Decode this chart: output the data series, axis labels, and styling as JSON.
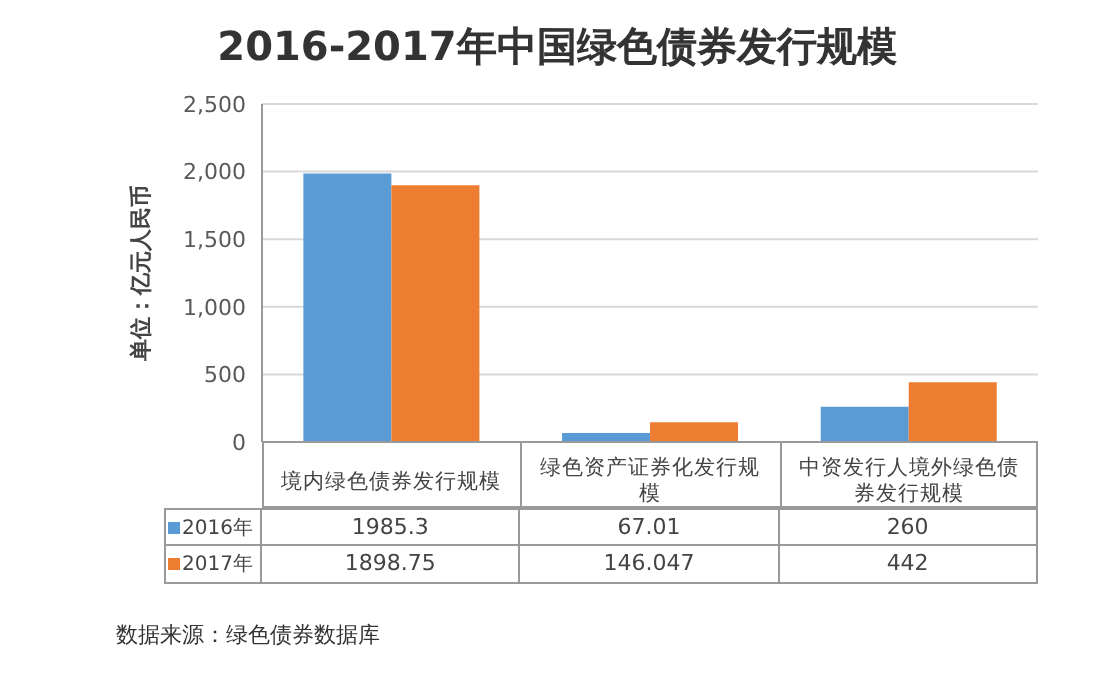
{
  "chart_data": {
    "type": "bar",
    "title": "2016-2017年中国绿色债券发行规模",
    "ylabel": "单位：亿元人民币",
    "categories": [
      "境内绿色债券发行规模",
      "绿色资产证券化发行规模",
      "中资发行人境外绿色债券发行规模"
    ],
    "series": [
      {
        "name": "2016年",
        "color": "#5b9bd5",
        "values": [
          1985.3,
          67.01,
          260
        ]
      },
      {
        "name": "2017年",
        "color": "#ed7d31",
        "values": [
          1898.75,
          146.047,
          442
        ]
      }
    ],
    "ylim": [
      0,
      2500
    ],
    "yticks": [
      {
        "value": 0,
        "label": "0"
      },
      {
        "value": 500,
        "label": "500"
      },
      {
        "value": 1000,
        "label": "1,000"
      },
      {
        "value": 1500,
        "label": "1,500"
      },
      {
        "value": 2000,
        "label": "2,000"
      },
      {
        "value": 2500,
        "label": "2,500"
      }
    ],
    "grid": "y",
    "legend": "bottom",
    "data_labels": true,
    "annotations": [
      "数据来源：绿色债券数据库"
    ]
  }
}
